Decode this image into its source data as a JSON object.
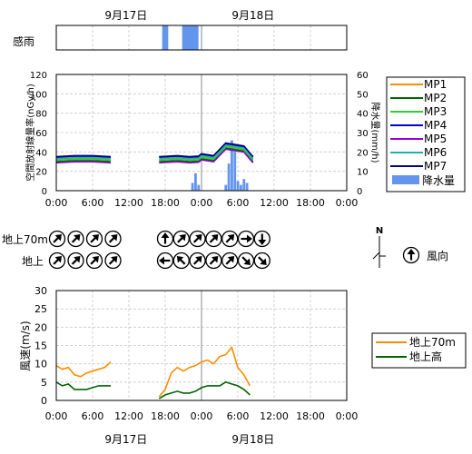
{
  "dates": {
    "top": [
      "9月17日",
      "9月18日"
    ],
    "bottom": [
      "9月17日",
      "9月18日"
    ]
  },
  "chart_data": [
    {
      "type": "bar",
      "name_label": "感雨",
      "x_unit": "hours since 2012-09-17 00:00 (not shown)",
      "events": [
        [
          17.5,
          18.5
        ],
        [
          20.8,
          23.5
        ]
      ],
      "color": "#6495ed"
    },
    {
      "type": "line",
      "ylabel": "空間放射線量率(nGy/h)",
      "ylabel2": "降水量(mm/h)",
      "ylim": [
        0,
        120
      ],
      "ylim2": [
        0,
        60
      ],
      "yticks": [
        "0",
        "20",
        "40",
        "60",
        "80",
        "100",
        "120"
      ],
      "yticks2": [
        "0",
        "10",
        "20",
        "30",
        "40",
        "50",
        "60"
      ],
      "xticks": [
        "0:00",
        "6:00",
        "12:00",
        "18:00",
        "0:00",
        "6:00",
        "12:00",
        "18:00",
        "0:00"
      ],
      "series": [
        {
          "name": "MP1",
          "color": "#ff8c00"
        },
        {
          "name": "MP2",
          "color": "#006400"
        },
        {
          "name": "MP3",
          "color": "#32cd32"
        },
        {
          "name": "MP4",
          "color": "#0000cd"
        },
        {
          "name": "MP5",
          "color": "#9400d3"
        },
        {
          "name": "MP6",
          "color": "#20b2aa"
        },
        {
          "name": "MP7",
          "color": "#000080"
        }
      ],
      "rain_label": "降水量",
      "rain_color": "#6495ed",
      "profile_segments": [
        {
          "x": [
            0,
            3,
            6,
            9
          ],
          "y": [
            30,
            31,
            31,
            30
          ]
        },
        {
          "x": [
            17,
            20,
            22,
            23.5,
            24,
            26,
            28,
            29,
            31,
            32.5
          ],
          "y": [
            30,
            31,
            30,
            30.5,
            33,
            31,
            44,
            43,
            41,
            30
          ]
        }
      ],
      "rain": {
        "x": [
          22.5,
          23,
          23.5,
          28,
          28.5,
          29,
          29.5,
          30,
          30.5,
          31,
          31.5
        ],
        "y": [
          4,
          9,
          3,
          3,
          14,
          26,
          20,
          5,
          3,
          6,
          4
        ]
      }
    },
    {
      "type": "table",
      "title": "風向",
      "rows": [
        {
          "label": "地上70m",
          "group1": [
            "NE",
            "NE",
            "NE",
            "NE"
          ],
          "group2": [
            "N",
            "NE",
            "NE",
            "NE",
            "NE",
            "E",
            "S"
          ]
        },
        {
          "label": "地上",
          "group1": [
            "NE",
            "NE",
            "NE",
            "NE"
          ],
          "group2": [
            "W",
            "NW",
            "NE",
            "NE",
            "NE",
            "SE",
            "SE"
          ]
        }
      ],
      "legend_letter": "N"
    },
    {
      "type": "line",
      "ylabel": "風速(m/s)",
      "ylim": [
        0,
        30
      ],
      "yticks": [
        "0",
        "5",
        "10",
        "15",
        "20",
        "25",
        "30"
      ],
      "xticks": [
        "0:00",
        "6:00",
        "12:00",
        "18:00",
        "0:00",
        "6:00",
        "12:00",
        "18:00",
        "0:00"
      ],
      "series": [
        {
          "name": "地上70m",
          "color": "#ff8c00",
          "segments": [
            {
              "x": [
                0,
                1,
                2,
                3,
                4,
                5,
                6,
                7,
                8,
                9
              ],
              "y": [
                9.5,
                8.5,
                9,
                7,
                6.5,
                7.5,
                8,
                8.5,
                9,
                10.5
              ]
            },
            {
              "x": [
                17,
                18,
                19,
                20,
                21,
                22,
                23,
                24,
                25,
                26,
                27,
                28,
                29,
                30,
                31,
                32
              ],
              "y": [
                1,
                3,
                7.5,
                9,
                8,
                9,
                9.5,
                10.5,
                11,
                10,
                12,
                12.5,
                14.5,
                9,
                7,
                4
              ]
            }
          ]
        },
        {
          "name": "地上高",
          "color": "#006400",
          "segments": [
            {
              "x": [
                0,
                1,
                2,
                3,
                4,
                5,
                6,
                7,
                8,
                9
              ],
              "y": [
                5,
                4,
                4.5,
                3,
                3,
                3,
                3.5,
                4,
                4,
                4
              ]
            },
            {
              "x": [
                17,
                18,
                19,
                20,
                21,
                22,
                23,
                24,
                25,
                26,
                27,
                28,
                29,
                30,
                31,
                32
              ],
              "y": [
                0.5,
                1.5,
                2,
                2.5,
                2,
                2,
                2.5,
                3.5,
                4,
                4,
                4,
                5,
                4.5,
                4,
                3,
                1.5
              ]
            }
          ]
        }
      ]
    }
  ]
}
